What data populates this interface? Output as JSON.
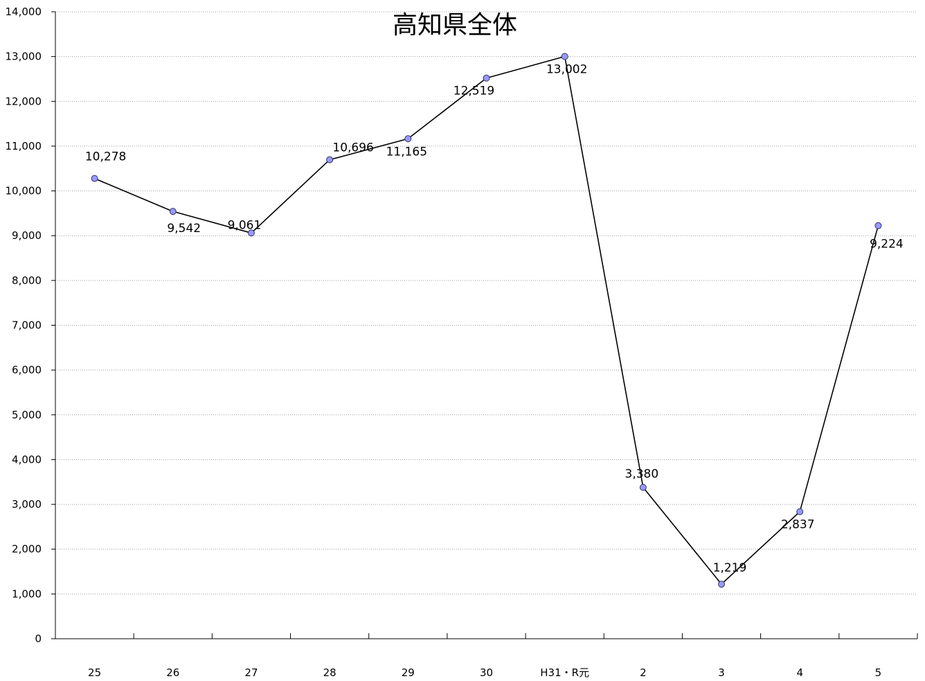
{
  "chart_data": {
    "type": "line",
    "title": "高知県全体",
    "xlabel": "",
    "ylabel": "",
    "categories": [
      "25",
      "26",
      "27",
      "28",
      "29",
      "30",
      "H31・R元",
      "2",
      "3",
      "4",
      "5"
    ],
    "series": [
      {
        "values": [
          10278,
          9542,
          9061,
          10696,
          11165,
          12519,
          13002,
          3380,
          1219,
          2837,
          9224
        ],
        "labels": [
          "10,278",
          "9,542",
          "9,061",
          "10,696",
          "11,165",
          "12,519",
          "13,002",
          "3,380",
          "1,219",
          "2,837",
          "9,224"
        ]
      }
    ],
    "ylim": [
      0,
      14000
    ],
    "y_ticks": [
      "0",
      "1,000",
      "2,000",
      "3,000",
      "4,000",
      "5,000",
      "6,000",
      "7,000",
      "8,000",
      "9,000",
      "10,000",
      "11,000",
      "12,000",
      "13,000",
      "14,000"
    ],
    "grid": "horizontal dotted",
    "legend": "none",
    "colors": {
      "line": "#000000",
      "marker_fill": "#9999ff",
      "marker_stroke": "#333366",
      "grid": "#999999"
    }
  }
}
